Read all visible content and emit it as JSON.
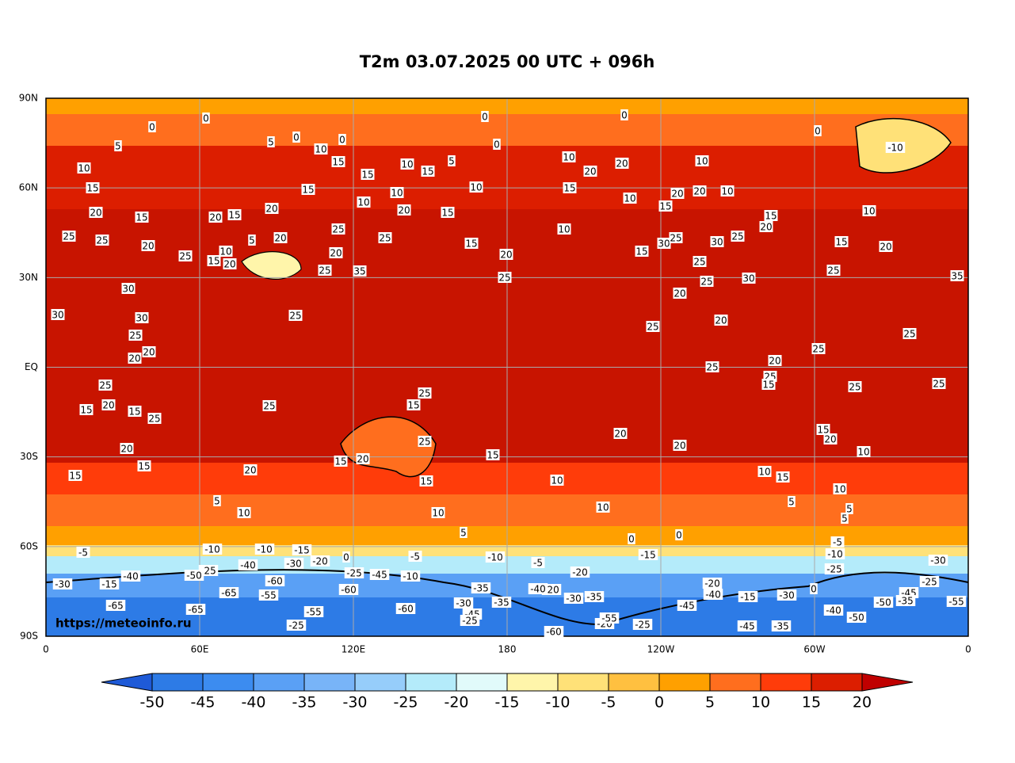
{
  "title": "T2m 03.07.2025 00 UTC + 096h",
  "map": {
    "lat_labels": [
      "90N",
      "60N",
      "30N",
      "EQ",
      "30S",
      "60S",
      "90S"
    ],
    "lon_labels": [
      "0",
      "60E",
      "120E",
      "180",
      "120W",
      "60W",
      "0"
    ],
    "watermark": "https://meteoinfo.ru",
    "contour_labels": [
      0,
      0,
      5,
      5,
      0,
      10,
      0,
      15,
      15,
      10,
      15,
      5,
      0,
      0,
      0,
      10,
      20,
      20,
      10,
      0,
      -10,
      10,
      15,
      20,
      15,
      20,
      15,
      20,
      15,
      10,
      10,
      20,
      15,
      10,
      15,
      10,
      15,
      20,
      20,
      10,
      15,
      20,
      10,
      25,
      25,
      20,
      25,
      15,
      20,
      10,
      5,
      20,
      25,
      20,
      25,
      35,
      25,
      15,
      10,
      20,
      25,
      15,
      30,
      25,
      30,
      25,
      25,
      25,
      30,
      20,
      15,
      20,
      25,
      35,
      30,
      30,
      30,
      25,
      20,
      20,
      25,
      25,
      20,
      25,
      25,
      20,
      25,
      25,
      15,
      25,
      25,
      25,
      20,
      15,
      15,
      25,
      25,
      25,
      15,
      25,
      20,
      20,
      15,
      20,
      10,
      20,
      15,
      15,
      20,
      15,
      20,
      15,
      10,
      15,
      10,
      15,
      10,
      5,
      10,
      10,
      10,
      5,
      5,
      5,
      5,
      0,
      0,
      -10,
      -5,
      -10,
      -15,
      0,
      -5,
      -10,
      -5,
      -15,
      -20,
      -25,
      -40,
      -30,
      -20,
      -25,
      -45,
      -10,
      -20,
      -40,
      -15,
      -30,
      0,
      -5,
      -10,
      -25,
      -30,
      -25,
      -45,
      -35,
      -50,
      -55,
      -30,
      -15,
      -40,
      -50,
      -65,
      -55,
      -60,
      -60,
      -65,
      -65,
      -55,
      -60,
      -25,
      -20,
      -40,
      -30,
      -35,
      -35,
      -30,
      -45,
      -25,
      -35,
      -45,
      -40,
      -50,
      -45,
      -35,
      -25,
      -20,
      -55,
      -60
    ]
  },
  "colorbar": {
    "ticks": [
      -50,
      -45,
      -40,
      -35,
      -30,
      -25,
      -20,
      -15,
      -10,
      -5,
      0,
      5,
      10,
      15,
      20
    ],
    "colors": [
      "#1e5ad7",
      "#2d7be6",
      "#3c8cf0",
      "#5aa0f5",
      "#78b4f8",
      "#96cdfa",
      "#b4ebfa",
      "#e1fafa",
      "#fff5aa",
      "#ffe178",
      "#ffc040",
      "#ffa000",
      "#ff6e1e",
      "#ff3c0a",
      "#dc1e00",
      "#c00000"
    ]
  }
}
